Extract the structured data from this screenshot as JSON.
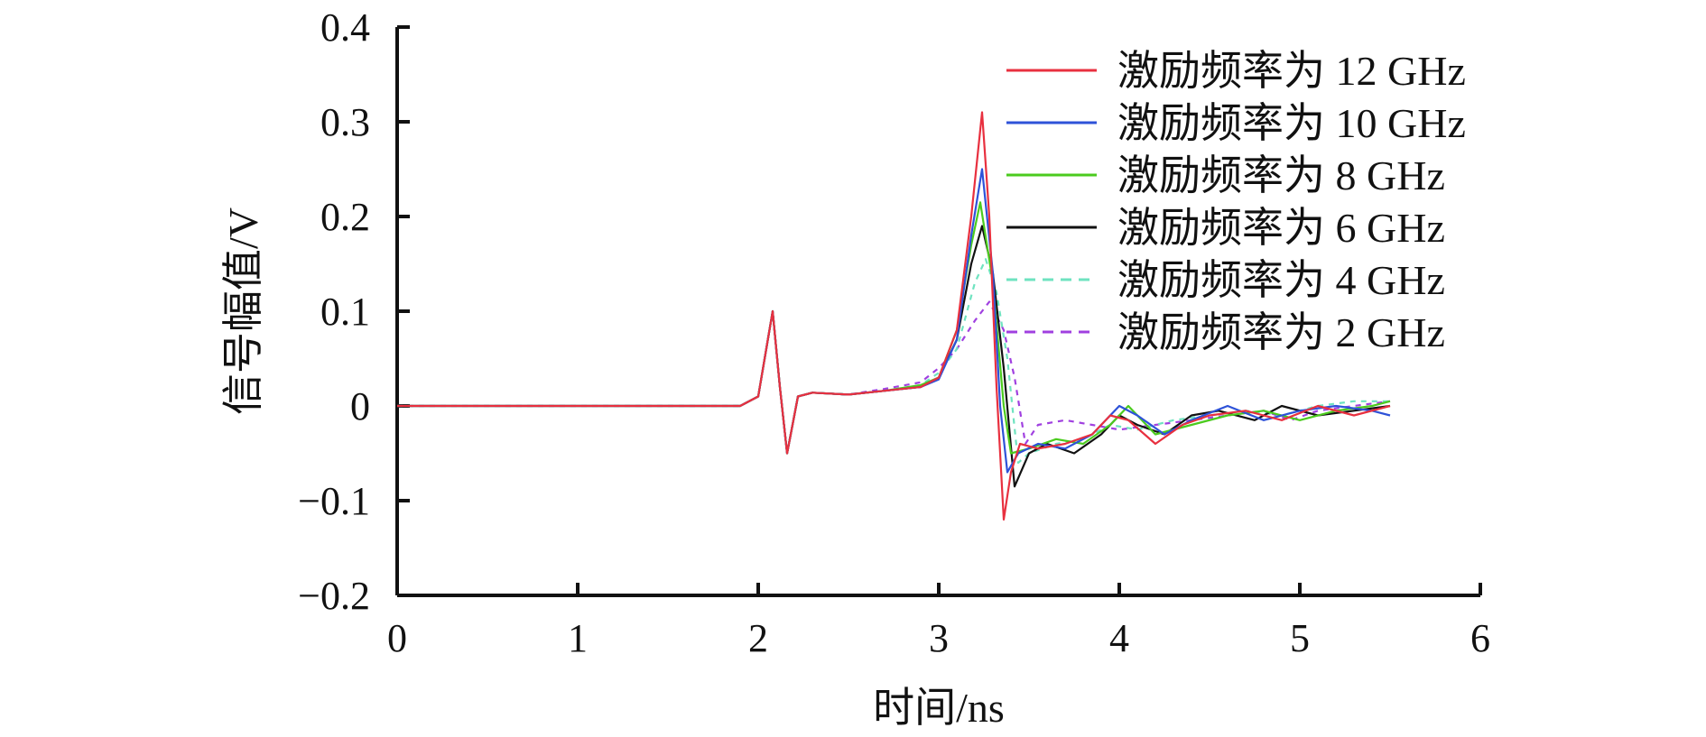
{
  "chart_data": {
    "type": "line",
    "xlabel": "时间/ns",
    "ylabel": "信号幅值/V",
    "xlim": [
      0,
      6
    ],
    "ylim": [
      -0.2,
      0.4
    ],
    "x_ticks": [
      "0",
      "1",
      "2",
      "3",
      "4",
      "5",
      "6"
    ],
    "y_ticks": [
      "0.4",
      "0.3",
      "0.2",
      "0.1",
      "0",
      "−0.1",
      "−0.2"
    ],
    "grid": false,
    "legend_position": "top-right",
    "series": [
      {
        "name": "激励频率为 12 GHz",
        "color": "#e8303f",
        "dash": "solid",
        "points": [
          [
            0,
            0
          ],
          [
            1.9,
            0
          ],
          [
            2.0,
            0.01
          ],
          [
            2.08,
            0.1
          ],
          [
            2.12,
            0.02
          ],
          [
            2.16,
            -0.05
          ],
          [
            2.22,
            0.01
          ],
          [
            2.3,
            0.014
          ],
          [
            2.5,
            0.012
          ],
          [
            2.7,
            0.016
          ],
          [
            2.9,
            0.02
          ],
          [
            3.0,
            0.03
          ],
          [
            3.1,
            0.08
          ],
          [
            3.18,
            0.2
          ],
          [
            3.24,
            0.31
          ],
          [
            3.28,
            0.2
          ],
          [
            3.32,
            0.02
          ],
          [
            3.36,
            -0.12
          ],
          [
            3.4,
            -0.07
          ],
          [
            3.45,
            -0.04
          ],
          [
            3.55,
            -0.045
          ],
          [
            3.7,
            -0.04
          ],
          [
            3.85,
            -0.03
          ],
          [
            3.95,
            -0.01
          ],
          [
            4.05,
            -0.015
          ],
          [
            4.2,
            -0.04
          ],
          [
            4.35,
            -0.02
          ],
          [
            4.5,
            -0.01
          ],
          [
            4.7,
            -0.005
          ],
          [
            4.9,
            -0.015
          ],
          [
            5.1,
            0
          ],
          [
            5.3,
            -0.01
          ],
          [
            5.5,
            0
          ]
        ]
      },
      {
        "name": "激励频率为 10 GHz",
        "color": "#2e52d8",
        "dash": "solid",
        "points": [
          [
            0,
            0
          ],
          [
            1.9,
            0
          ],
          [
            2.0,
            0.01
          ],
          [
            2.08,
            0.1
          ],
          [
            2.12,
            0.02
          ],
          [
            2.16,
            -0.05
          ],
          [
            2.22,
            0.01
          ],
          [
            2.3,
            0.014
          ],
          [
            2.5,
            0.012
          ],
          [
            2.7,
            0.016
          ],
          [
            2.9,
            0.02
          ],
          [
            3.0,
            0.028
          ],
          [
            3.1,
            0.07
          ],
          [
            3.18,
            0.18
          ],
          [
            3.24,
            0.25
          ],
          [
            3.3,
            0.14
          ],
          [
            3.34,
            0.0
          ],
          [
            3.38,
            -0.07
          ],
          [
            3.44,
            -0.05
          ],
          [
            3.55,
            -0.04
          ],
          [
            3.7,
            -0.045
          ],
          [
            3.85,
            -0.03
          ],
          [
            4.0,
            0.0
          ],
          [
            4.1,
            -0.01
          ],
          [
            4.25,
            -0.03
          ],
          [
            4.4,
            -0.015
          ],
          [
            4.6,
            0.0
          ],
          [
            4.8,
            -0.015
          ],
          [
            5.0,
            -0.005
          ],
          [
            5.2,
            0.0
          ],
          [
            5.4,
            -0.005
          ],
          [
            5.5,
            -0.01
          ]
        ]
      },
      {
        "name": "激励频率为 8 GHz",
        "color": "#4bcb1e",
        "dash": "solid",
        "points": [
          [
            0,
            0
          ],
          [
            1.9,
            0
          ],
          [
            2.0,
            0.01
          ],
          [
            2.08,
            0.1
          ],
          [
            2.12,
            0.02
          ],
          [
            2.16,
            -0.05
          ],
          [
            2.22,
            0.01
          ],
          [
            2.3,
            0.014
          ],
          [
            2.5,
            0.012
          ],
          [
            2.7,
            0.016
          ],
          [
            2.9,
            0.022
          ],
          [
            3.0,
            0.03
          ],
          [
            3.1,
            0.08
          ],
          [
            3.18,
            0.17
          ],
          [
            3.23,
            0.215
          ],
          [
            3.3,
            0.13
          ],
          [
            3.36,
            0.0
          ],
          [
            3.4,
            -0.05
          ],
          [
            3.5,
            -0.045
          ],
          [
            3.65,
            -0.035
          ],
          [
            3.8,
            -0.04
          ],
          [
            3.95,
            -0.02
          ],
          [
            4.05,
            0.0
          ],
          [
            4.2,
            -0.03
          ],
          [
            4.4,
            -0.02
          ],
          [
            4.6,
            -0.01
          ],
          [
            4.8,
            -0.005
          ],
          [
            5.0,
            -0.015
          ],
          [
            5.2,
            -0.005
          ],
          [
            5.4,
            0.0
          ],
          [
            5.5,
            0.005
          ]
        ]
      },
      {
        "name": "激励频率为 6 GHz",
        "color": "#111111",
        "dash": "solid",
        "points": [
          [
            0,
            0
          ],
          [
            1.9,
            0
          ],
          [
            2.0,
            0.01
          ],
          [
            2.08,
            0.1
          ],
          [
            2.12,
            0.02
          ],
          [
            2.16,
            -0.05
          ],
          [
            2.22,
            0.01
          ],
          [
            2.3,
            0.014
          ],
          [
            2.5,
            0.012
          ],
          [
            2.7,
            0.016
          ],
          [
            2.9,
            0.02
          ],
          [
            3.0,
            0.03
          ],
          [
            3.1,
            0.07
          ],
          [
            3.18,
            0.15
          ],
          [
            3.24,
            0.19
          ],
          [
            3.3,
            0.14
          ],
          [
            3.36,
            0.04
          ],
          [
            3.42,
            -0.085
          ],
          [
            3.5,
            -0.05
          ],
          [
            3.6,
            -0.04
          ],
          [
            3.75,
            -0.05
          ],
          [
            3.9,
            -0.03
          ],
          [
            4.0,
            -0.01
          ],
          [
            4.1,
            -0.02
          ],
          [
            4.25,
            -0.03
          ],
          [
            4.4,
            -0.01
          ],
          [
            4.55,
            -0.005
          ],
          [
            4.75,
            -0.015
          ],
          [
            4.9,
            0.0
          ],
          [
            5.1,
            -0.01
          ],
          [
            5.3,
            -0.005
          ],
          [
            5.5,
            0.0
          ]
        ]
      },
      {
        "name": "激励频率为 4 GHz",
        "color": "#6fe3c0",
        "dash": "6,6",
        "points": [
          [
            0,
            0
          ],
          [
            1.9,
            0
          ],
          [
            2.0,
            0.01
          ],
          [
            2.08,
            0.1
          ],
          [
            2.12,
            0.02
          ],
          [
            2.16,
            -0.05
          ],
          [
            2.22,
            0.01
          ],
          [
            2.3,
            0.014
          ],
          [
            2.5,
            0.012
          ],
          [
            2.7,
            0.016
          ],
          [
            2.9,
            0.022
          ],
          [
            3.0,
            0.035
          ],
          [
            3.1,
            0.06
          ],
          [
            3.2,
            0.13
          ],
          [
            3.26,
            0.155
          ],
          [
            3.32,
            0.12
          ],
          [
            3.38,
            0.05
          ],
          [
            3.44,
            -0.06
          ],
          [
            3.5,
            -0.05
          ],
          [
            3.65,
            -0.04
          ],
          [
            3.8,
            -0.035
          ],
          [
            3.95,
            -0.02
          ],
          [
            4.1,
            -0.025
          ],
          [
            4.3,
            -0.015
          ],
          [
            4.5,
            -0.01
          ],
          [
            4.7,
            -0.005
          ],
          [
            4.9,
            -0.01
          ],
          [
            5.1,
            0.0
          ],
          [
            5.3,
            0.005
          ],
          [
            5.5,
            0.005
          ]
        ]
      },
      {
        "name": "激励频率为 2 GHz",
        "color": "#a040e0",
        "dash": "6,6",
        "points": [
          [
            0,
            0
          ],
          [
            1.9,
            0
          ],
          [
            2.0,
            0.01
          ],
          [
            2.08,
            0.1
          ],
          [
            2.12,
            0.02
          ],
          [
            2.16,
            -0.05
          ],
          [
            2.22,
            0.01
          ],
          [
            2.3,
            0.014
          ],
          [
            2.5,
            0.012
          ],
          [
            2.7,
            0.018
          ],
          [
            2.9,
            0.025
          ],
          [
            3.0,
            0.04
          ],
          [
            3.1,
            0.06
          ],
          [
            3.2,
            0.09
          ],
          [
            3.28,
            0.11
          ],
          [
            3.36,
            0.08
          ],
          [
            3.42,
            0.03
          ],
          [
            3.48,
            -0.04
          ],
          [
            3.55,
            -0.02
          ],
          [
            3.7,
            -0.015
          ],
          [
            3.85,
            -0.02
          ],
          [
            4.0,
            -0.025
          ],
          [
            4.2,
            -0.02
          ],
          [
            4.4,
            -0.015
          ],
          [
            4.6,
            -0.01
          ],
          [
            4.8,
            -0.005
          ],
          [
            4.95,
            -0.015
          ],
          [
            5.1,
            -0.005
          ],
          [
            5.3,
            0.0
          ],
          [
            5.5,
            0.005
          ]
        ]
      }
    ]
  }
}
